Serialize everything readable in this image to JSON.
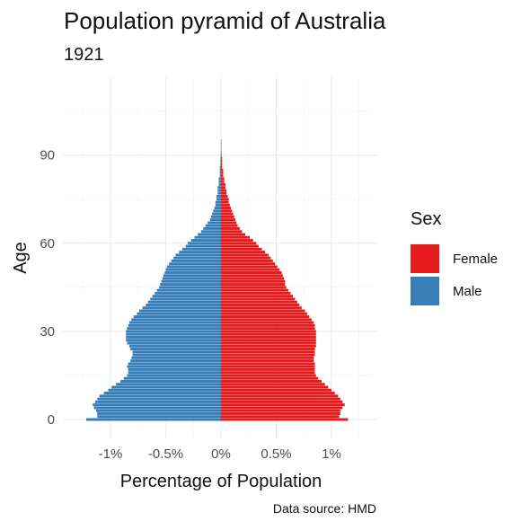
{
  "title": "Population pyramid of Australia",
  "subtitle": "1921",
  "caption": "Data source: HMD",
  "legend": {
    "title": "Sex",
    "items": [
      {
        "label": "Female",
        "color": "#e41a1c"
      },
      {
        "label": "Male",
        "color": "#377eb8"
      }
    ]
  },
  "chart_data": {
    "type": "bar",
    "orientation": "horizontal",
    "layout": "population-pyramid",
    "xlabel": "Percentage of Population",
    "ylabel": "Age",
    "xlim": [
      -1.4,
      1.4
    ],
    "ylim": [
      -4,
      108
    ],
    "x_ticks": [
      -1,
      -0.5,
      0,
      0.5,
      1
    ],
    "x_tick_labels": [
      "-1%",
      "-0.5%",
      "0%",
      "0.5%",
      "1%"
    ],
    "y_ticks": [
      0,
      30,
      60,
      90
    ],
    "y_tick_labels": [
      "0",
      "30",
      "60",
      "90"
    ],
    "grid": true,
    "legend_position": "right",
    "ages": [
      0,
      1,
      2,
      3,
      4,
      5,
      6,
      7,
      8,
      9,
      10,
      11,
      12,
      13,
      14,
      15,
      16,
      17,
      18,
      19,
      20,
      21,
      22,
      23,
      24,
      25,
      26,
      27,
      28,
      29,
      30,
      31,
      32,
      33,
      34,
      35,
      36,
      37,
      38,
      39,
      40,
      41,
      42,
      43,
      44,
      45,
      46,
      47,
      48,
      49,
      50,
      51,
      52,
      53,
      54,
      55,
      56,
      57,
      58,
      59,
      60,
      61,
      62,
      63,
      64,
      65,
      66,
      67,
      68,
      69,
      70,
      71,
      72,
      73,
      74,
      75,
      76,
      77,
      78,
      79,
      80,
      81,
      82,
      83,
      84,
      85,
      86,
      87,
      88,
      89,
      90,
      91,
      92,
      93,
      94,
      95
    ],
    "series": [
      {
        "name": "Female",
        "color": "#e41a1c",
        "values": [
          1.15,
          1.07,
          1.08,
          1.08,
          1.1,
          1.12,
          1.1,
          1.08,
          1.06,
          1.03,
          1.0,
          0.97,
          0.94,
          0.91,
          0.88,
          0.86,
          0.85,
          0.85,
          0.85,
          0.85,
          0.84,
          0.84,
          0.85,
          0.85,
          0.85,
          0.86,
          0.86,
          0.86,
          0.86,
          0.86,
          0.86,
          0.85,
          0.85,
          0.84,
          0.82,
          0.8,
          0.78,
          0.76,
          0.73,
          0.71,
          0.69,
          0.67,
          0.65,
          0.63,
          0.61,
          0.59,
          0.58,
          0.58,
          0.57,
          0.56,
          0.55,
          0.53,
          0.51,
          0.49,
          0.47,
          0.45,
          0.43,
          0.4,
          0.37,
          0.34,
          0.32,
          0.29,
          0.26,
          0.22,
          0.19,
          0.17,
          0.15,
          0.14,
          0.13,
          0.12,
          0.11,
          0.1,
          0.09,
          0.08,
          0.07,
          0.07,
          0.06,
          0.05,
          0.05,
          0.04,
          0.04,
          0.03,
          0.03,
          0.02,
          0.02,
          0.02,
          0.01,
          0.01,
          0.01,
          0.01,
          0.005,
          0.005,
          0.003,
          0.002,
          0.001,
          0.001
        ]
      },
      {
        "name": "Male",
        "color": "#377eb8",
        "values": [
          -1.22,
          -1.12,
          -1.12,
          -1.13,
          -1.15,
          -1.16,
          -1.14,
          -1.12,
          -1.1,
          -1.06,
          -1.02,
          -0.99,
          -0.95,
          -0.91,
          -0.88,
          -0.85,
          -0.84,
          -0.84,
          -0.85,
          -0.84,
          -0.82,
          -0.81,
          -0.8,
          -0.8,
          -0.82,
          -0.83,
          -0.85,
          -0.86,
          -0.86,
          -0.86,
          -0.86,
          -0.85,
          -0.84,
          -0.83,
          -0.81,
          -0.79,
          -0.76,
          -0.74,
          -0.71,
          -0.68,
          -0.66,
          -0.64,
          -0.62,
          -0.6,
          -0.58,
          -0.56,
          -0.55,
          -0.54,
          -0.53,
          -0.52,
          -0.51,
          -0.5,
          -0.49,
          -0.47,
          -0.45,
          -0.43,
          -0.41,
          -0.38,
          -0.35,
          -0.32,
          -0.3,
          -0.27,
          -0.24,
          -0.21,
          -0.18,
          -0.16,
          -0.14,
          -0.12,
          -0.1,
          -0.09,
          -0.08,
          -0.07,
          -0.06,
          -0.05,
          -0.05,
          -0.04,
          -0.04,
          -0.03,
          -0.03,
          -0.03,
          -0.02,
          -0.02,
          -0.02,
          -0.01,
          -0.01,
          -0.01,
          -0.01,
          -0.005,
          -0.005,
          -0.004,
          -0.003,
          -0.002,
          -0.002,
          -0.001,
          -0.001,
          -0.001
        ]
      }
    ]
  }
}
